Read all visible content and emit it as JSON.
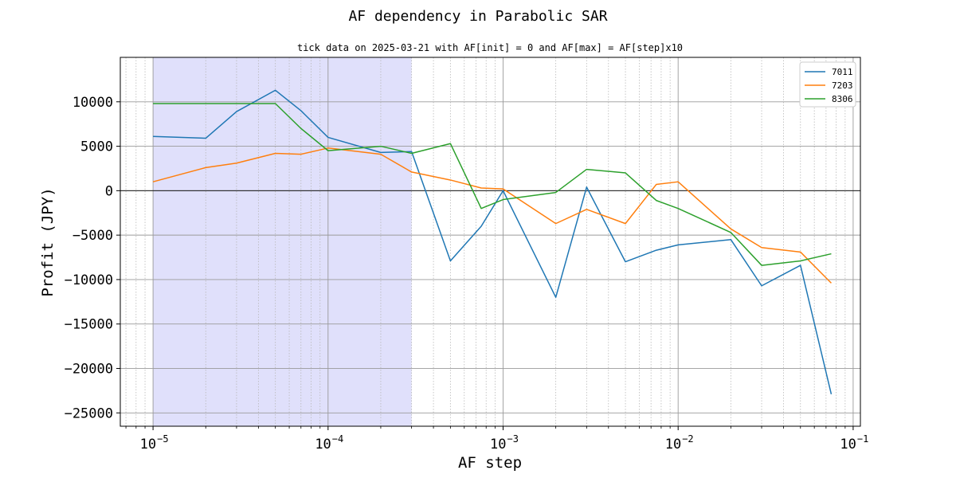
{
  "chart_data": {
    "type": "line",
    "title": "AF dependency in Parabolic SAR",
    "subtitle": "tick data on 2025-03-21 with AF[init] = 0 and AF[max] = AF[step]x10",
    "xlabel": "AF step",
    "ylabel": "Profit (JPY)",
    "xscale": "log",
    "xlim": [
      6.5e-06,
      0.11
    ],
    "ylim": [
      -26500,
      15000
    ],
    "grid": true,
    "x_major_ticks": [
      {
        "value": 1e-05,
        "base": "10",
        "exp": "−5"
      },
      {
        "value": 0.0001,
        "base": "10",
        "exp": "−4"
      },
      {
        "value": 0.001,
        "base": "10",
        "exp": "−3"
      },
      {
        "value": 0.01,
        "base": "10",
        "exp": "−2"
      },
      {
        "value": 0.1,
        "base": "10",
        "exp": "−1"
      }
    ],
    "y_ticks": [
      {
        "value": 10000,
        "label": "10000"
      },
      {
        "value": 5000,
        "label": "5000"
      },
      {
        "value": 0,
        "label": "0"
      },
      {
        "value": -5000,
        "label": "−5000"
      },
      {
        "value": -10000,
        "label": "−10000"
      },
      {
        "value": -15000,
        "label": "−15000"
      },
      {
        "value": -20000,
        "label": "−20000"
      },
      {
        "value": -25000,
        "label": "−25000"
      }
    ],
    "highlight_span": {
      "x_from": 1e-05,
      "x_to": 0.0003,
      "color": "#e0e0fb"
    },
    "zero_line": 0,
    "legend_position": "top-right",
    "x": [
      1e-05,
      2e-05,
      3e-05,
      5e-05,
      7e-05,
      0.0001,
      0.0002,
      0.0003,
      0.0005,
      0.00075,
      0.001,
      0.002,
      0.003,
      0.005,
      0.0075,
      0.01,
      0.02,
      0.03,
      0.05,
      0.075
    ],
    "series": [
      {
        "name": "7011",
        "color": "#1f77b4",
        "values": [
          6100,
          5900,
          8900,
          11300,
          9000,
          6000,
          4300,
          4400,
          -7900,
          -4000,
          0,
          -12000,
          400,
          -8000,
          -6700,
          -6100,
          -5500,
          -10700,
          -8400,
          -22900
        ]
      },
      {
        "name": "7203",
        "color": "#ff7f0e",
        "values": [
          1000,
          2600,
          3100,
          4200,
          4100,
          4800,
          4100,
          2100,
          1200,
          300,
          200,
          -3700,
          -2100,
          -3700,
          700,
          1000,
          -4300,
          -6400,
          -6900,
          -10400
        ]
      },
      {
        "name": "8306",
        "color": "#2ca02c",
        "values": [
          9800,
          9800,
          9800,
          9800,
          7000,
          4500,
          5000,
          4200,
          5300,
          -2000,
          -1000,
          -200,
          2400,
          2000,
          -1100,
          -2000,
          -4700,
          -8400,
          -7900,
          -7100
        ]
      }
    ]
  }
}
